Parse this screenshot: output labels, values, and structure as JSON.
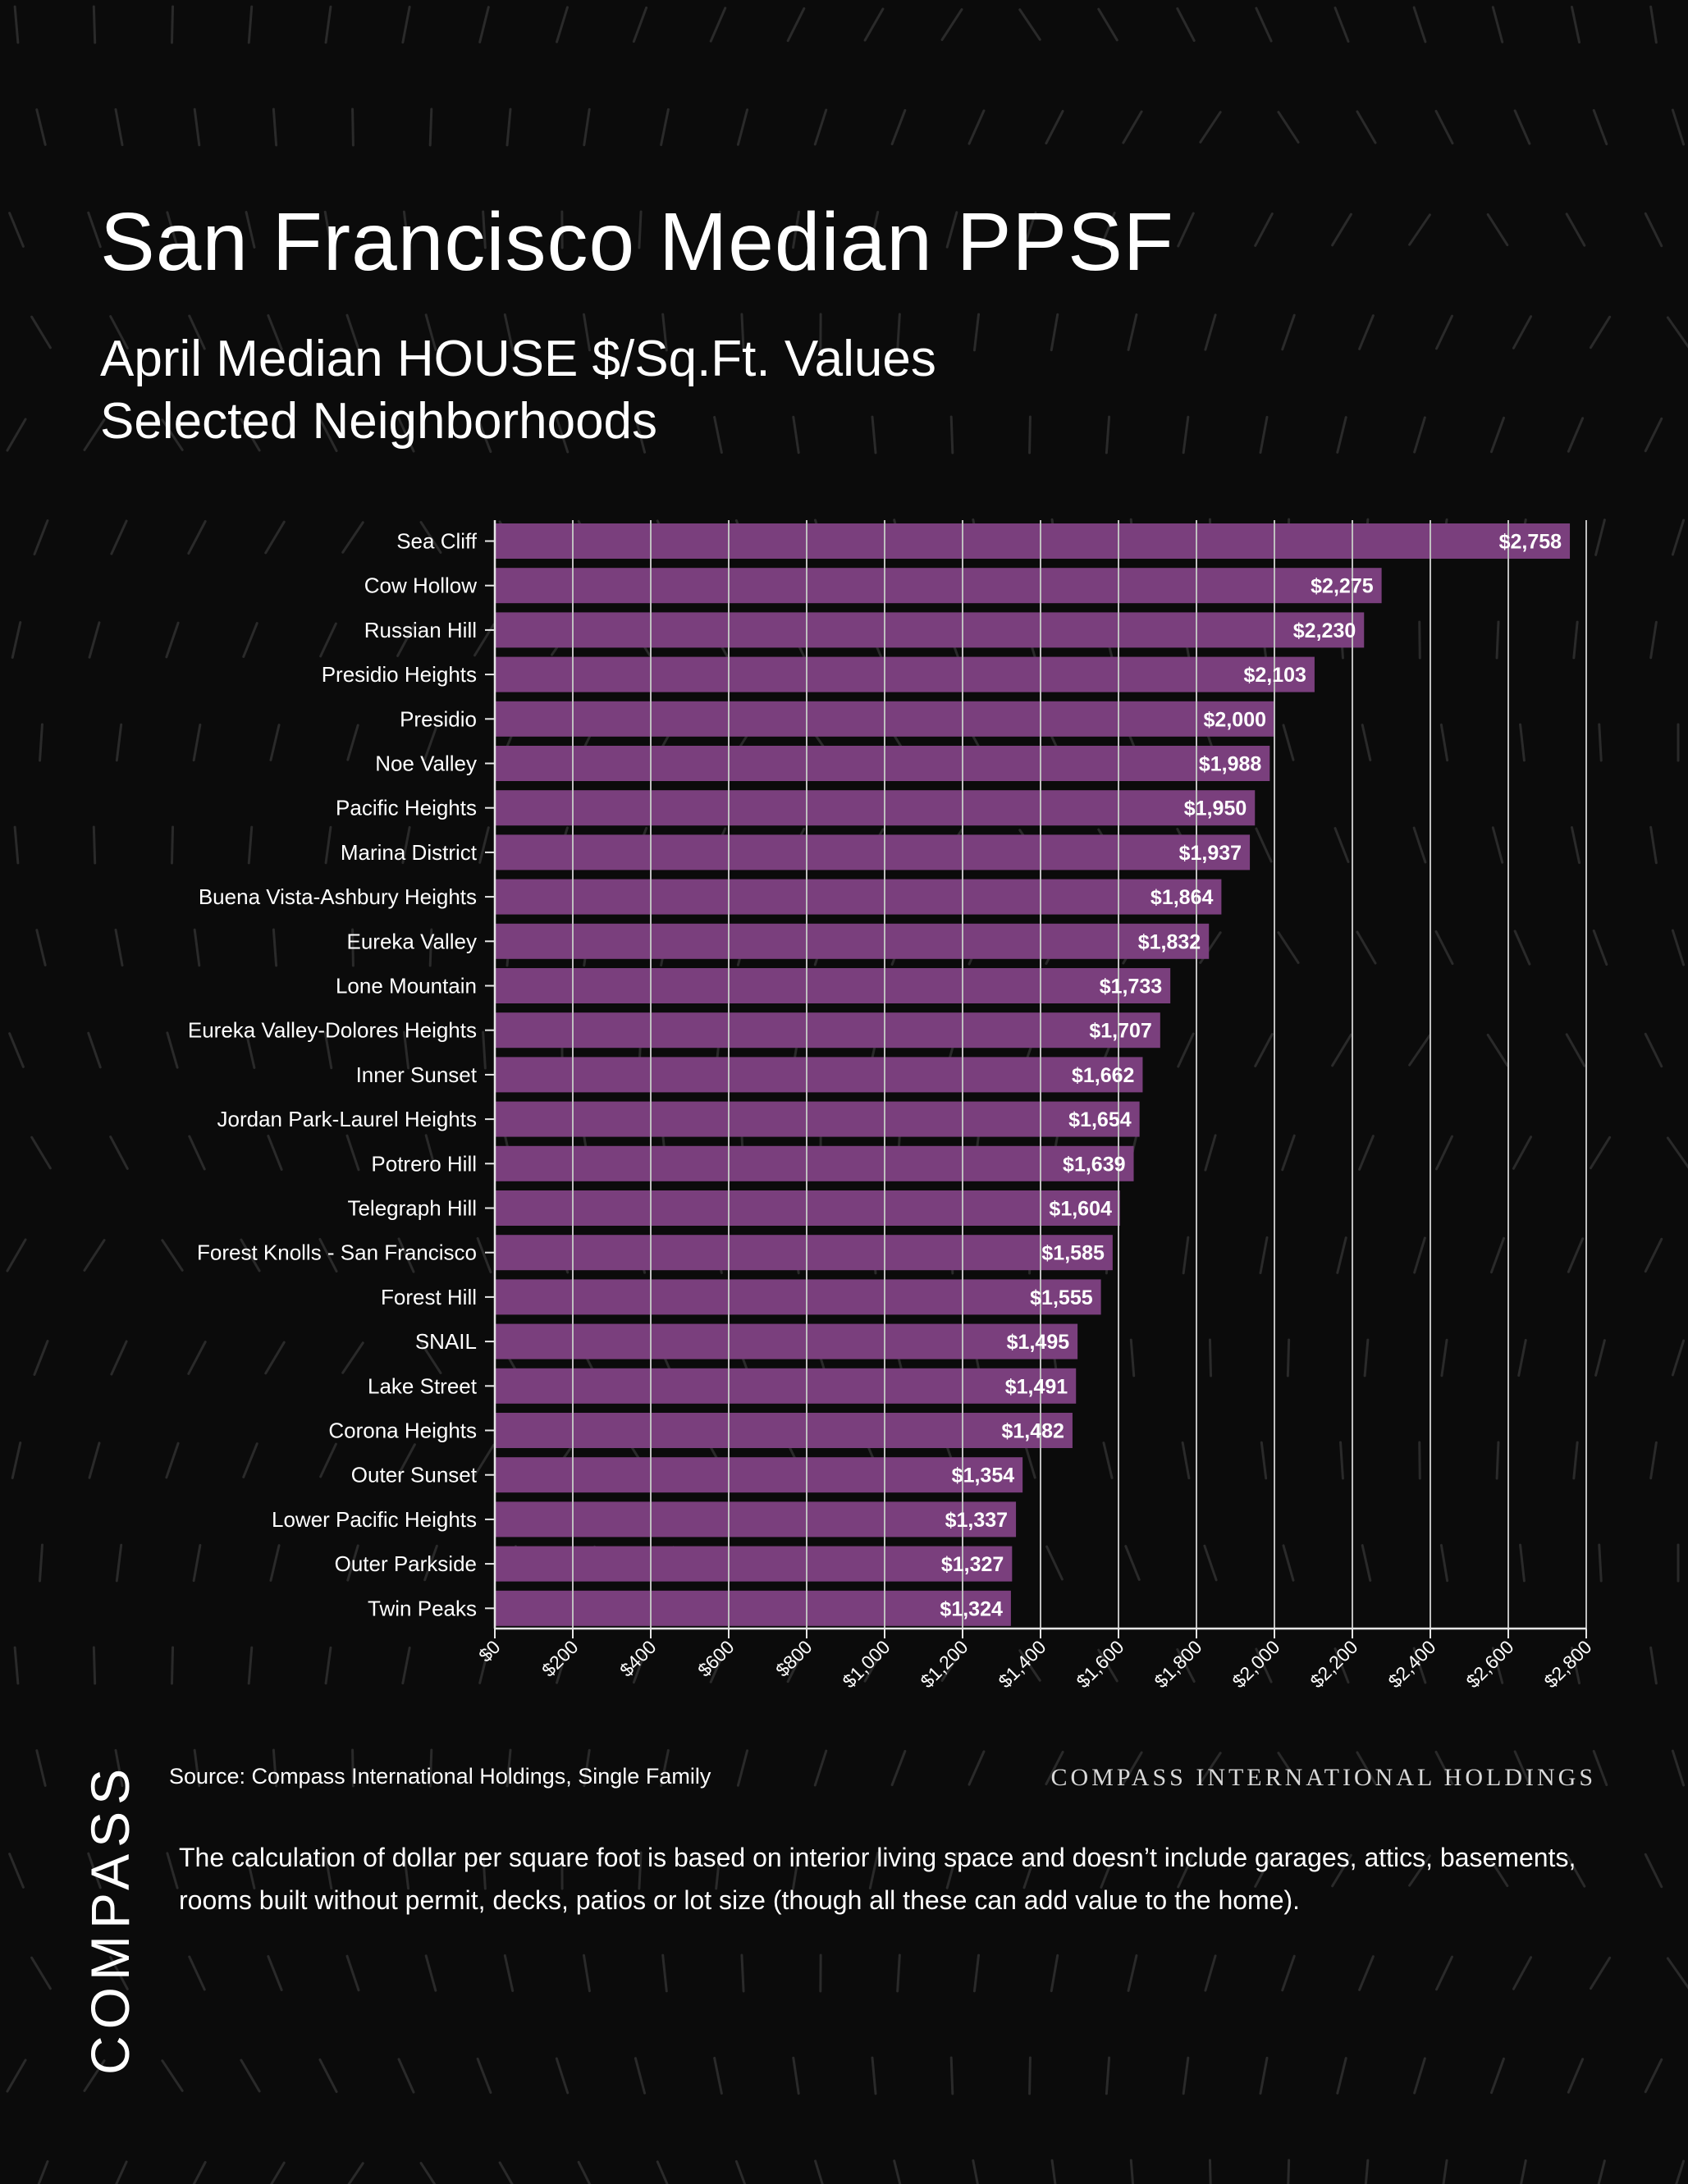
{
  "header": {
    "title": "San Francisco Median PPSF",
    "subtitle_line1": "April Median HOUSE $/Sq.Ft. Values",
    "subtitle_line2": "Selected Neighborhoods"
  },
  "chart_data": {
    "type": "bar",
    "orientation": "horizontal",
    "categories": [
      "Sea Cliff",
      "Cow Hollow",
      "Russian Hill",
      "Presidio Heights",
      "Presidio",
      "Noe Valley",
      "Pacific Heights",
      "Marina District",
      "Buena Vista-Ashbury Heights",
      "Eureka Valley",
      "Lone Mountain",
      "Eureka Valley-Dolores Heights",
      "Inner Sunset",
      "Jordan Park-Laurel Heights",
      "Potrero Hill",
      "Telegraph Hill",
      "Forest Knolls - San Francisco",
      "Forest Hill",
      "SNAIL",
      "Lake Street",
      "Corona Heights",
      "Outer Sunset",
      "Lower Pacific Heights",
      "Outer Parkside",
      "Twin Peaks"
    ],
    "values": [
      2758,
      2275,
      2230,
      2103,
      2000,
      1988,
      1950,
      1937,
      1864,
      1832,
      1733,
      1707,
      1662,
      1654,
      1639,
      1604,
      1585,
      1555,
      1495,
      1491,
      1482,
      1354,
      1337,
      1327,
      1324
    ],
    "value_labels": [
      "$2,758",
      "$2,275",
      "$2,230",
      "$2,103",
      "$2,000",
      "$1,988",
      "$1,950",
      "$1,937",
      "$1,864",
      "$1,832",
      "$1,733",
      "$1,707",
      "$1,662",
      "$1,654",
      "$1,639",
      "$1,604",
      "$1,585",
      "$1,555",
      "$1,495",
      "$1,491",
      "$1,482",
      "$1,354",
      "$1,337",
      "$1,327",
      "$1,324"
    ],
    "xlim": [
      0,
      2800
    ],
    "x_ticks": [
      0,
      200,
      400,
      600,
      800,
      1000,
      1200,
      1400,
      1600,
      1800,
      2000,
      2200,
      2400,
      2600,
      2800
    ],
    "x_tick_labels": [
      "$0",
      "$200",
      "$400",
      "$600",
      "$800",
      "$1,000",
      "$1,200",
      "$1,400",
      "$1,600",
      "$1,800",
      "$2,000",
      "$2,200",
      "$2,400",
      "$2,600",
      "$2,800"
    ],
    "grid": true,
    "bar_color": "#7a3f7d",
    "grid_color": "#bfbfbf"
  },
  "footer": {
    "source": "Source: Compass International Holdings, Single Family",
    "brand_text": "COMPASS INTERNATIONAL HOLDINGS",
    "footnote": "The calculation of dollar per square foot is based on interior living space and doesn’t include garages, attics, basements, rooms built without permit, decks, patios or lot size (though all these can add value to the home).",
    "logo": "COMPASS"
  }
}
